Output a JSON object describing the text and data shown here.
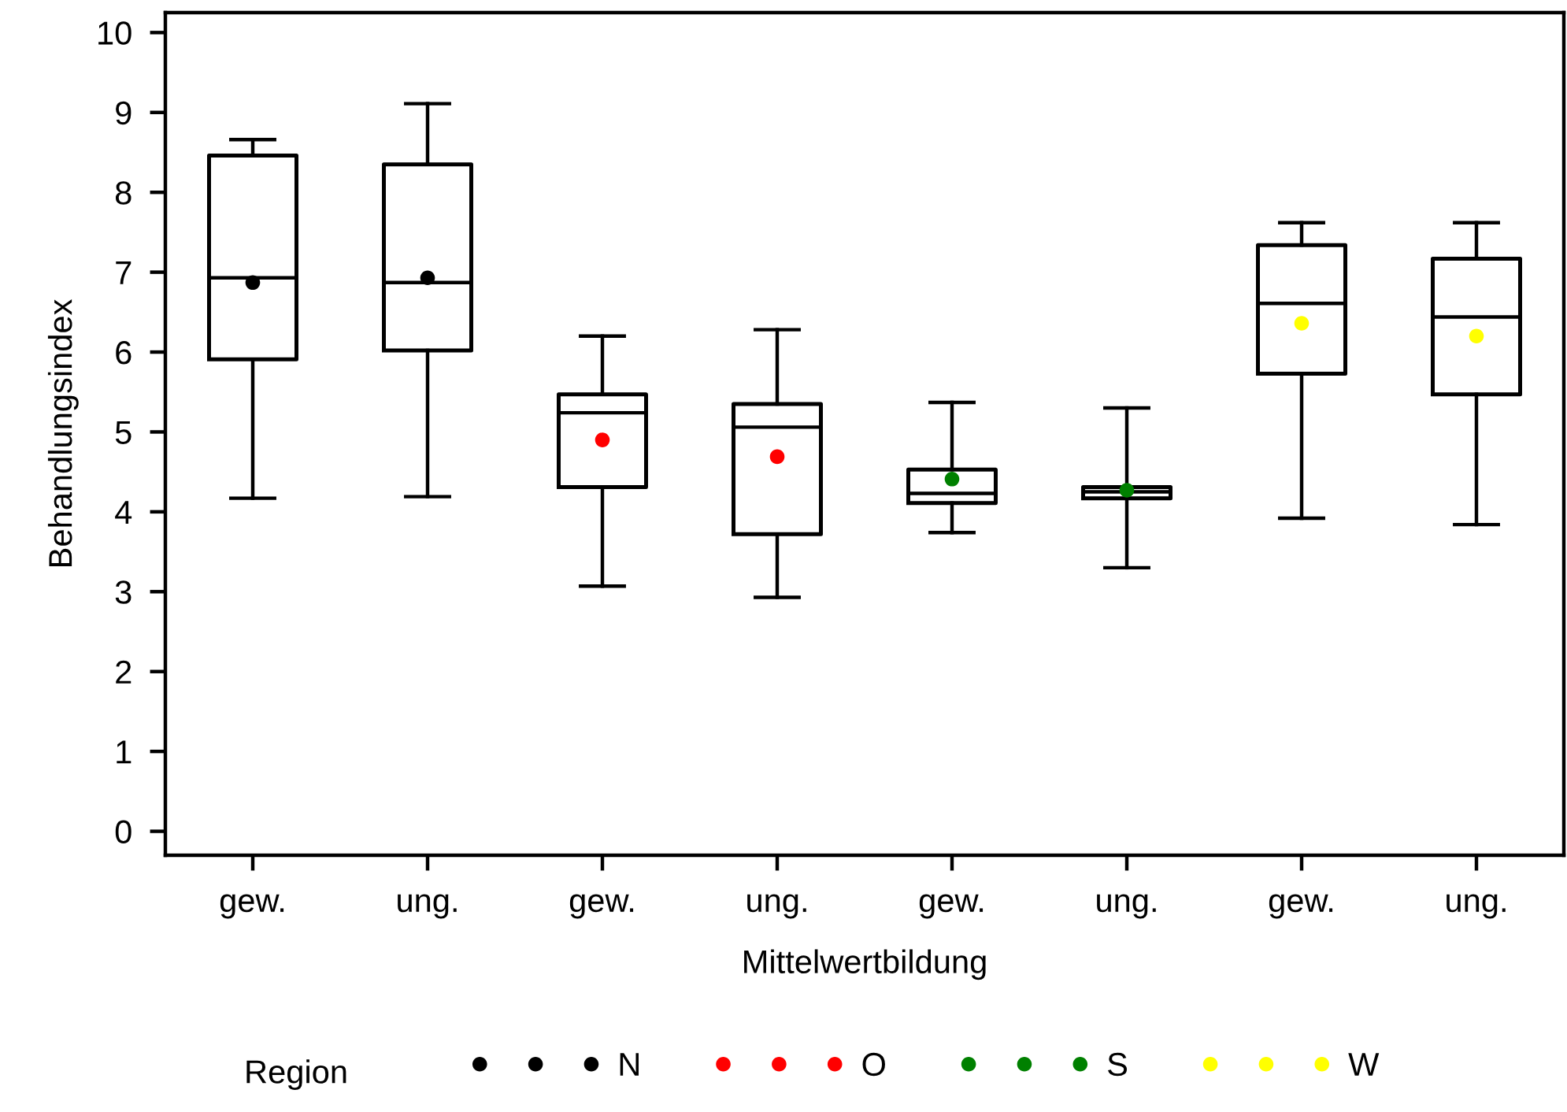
{
  "chart_data": {
    "type": "box",
    "xlabel": "Mittelwertbildung",
    "ylabel": "Behandlungsindex",
    "legend_title": "Region",
    "categories": [
      "gew.",
      "ung.",
      "gew.",
      "ung.",
      "gew.",
      "ung.",
      "gew.",
      "ung."
    ],
    "ylim": [
      -0.3,
      10.25
    ],
    "yticks": [
      0,
      1,
      2,
      3,
      4,
      5,
      6,
      7,
      8,
      9,
      10
    ],
    "grid": false,
    "legend": "bottom",
    "marker": "circle",
    "boxes": [
      {
        "low": 4.17,
        "q1": 5.91,
        "median": 6.93,
        "q3": 8.46,
        "high": 8.66
      },
      {
        "low": 4.19,
        "q1": 6.02,
        "median": 6.87,
        "q3": 8.35,
        "high": 9.11
      },
      {
        "low": 3.07,
        "q1": 4.31,
        "median": 5.24,
        "q3": 5.47,
        "high": 6.2
      },
      {
        "low": 2.93,
        "q1": 3.72,
        "median": 5.06,
        "q3": 5.35,
        "high": 6.28
      },
      {
        "low": 3.74,
        "q1": 4.11,
        "median": 4.23,
        "q3": 4.53,
        "high": 5.37
      },
      {
        "low": 3.3,
        "q1": 4.17,
        "median": 4.25,
        "q3": 4.31,
        "high": 5.3
      },
      {
        "low": 3.92,
        "q1": 5.73,
        "median": 6.61,
        "q3": 7.34,
        "high": 7.62
      },
      {
        "low": 3.84,
        "q1": 5.47,
        "median": 6.44,
        "q3": 7.17,
        "high": 7.62
      }
    ],
    "series": [
      {
        "type": "scatter",
        "name": "N",
        "color": "#000000",
        "values": [
          6.87,
          6.93,
          null,
          null,
          null,
          null,
          null,
          null
        ]
      },
      {
        "type": "scatter",
        "name": "O",
        "color": "#ff0000",
        "values": [
          null,
          null,
          4.9,
          4.69,
          null,
          null,
          null,
          null
        ]
      },
      {
        "type": "scatter",
        "name": "S",
        "color": "#008000",
        "values": [
          null,
          null,
          null,
          null,
          4.41,
          4.27,
          null,
          null
        ]
      },
      {
        "type": "scatter",
        "name": "W",
        "color": "#ffff00",
        "values": [
          null,
          null,
          null,
          null,
          null,
          null,
          6.36,
          6.2
        ]
      }
    ]
  }
}
